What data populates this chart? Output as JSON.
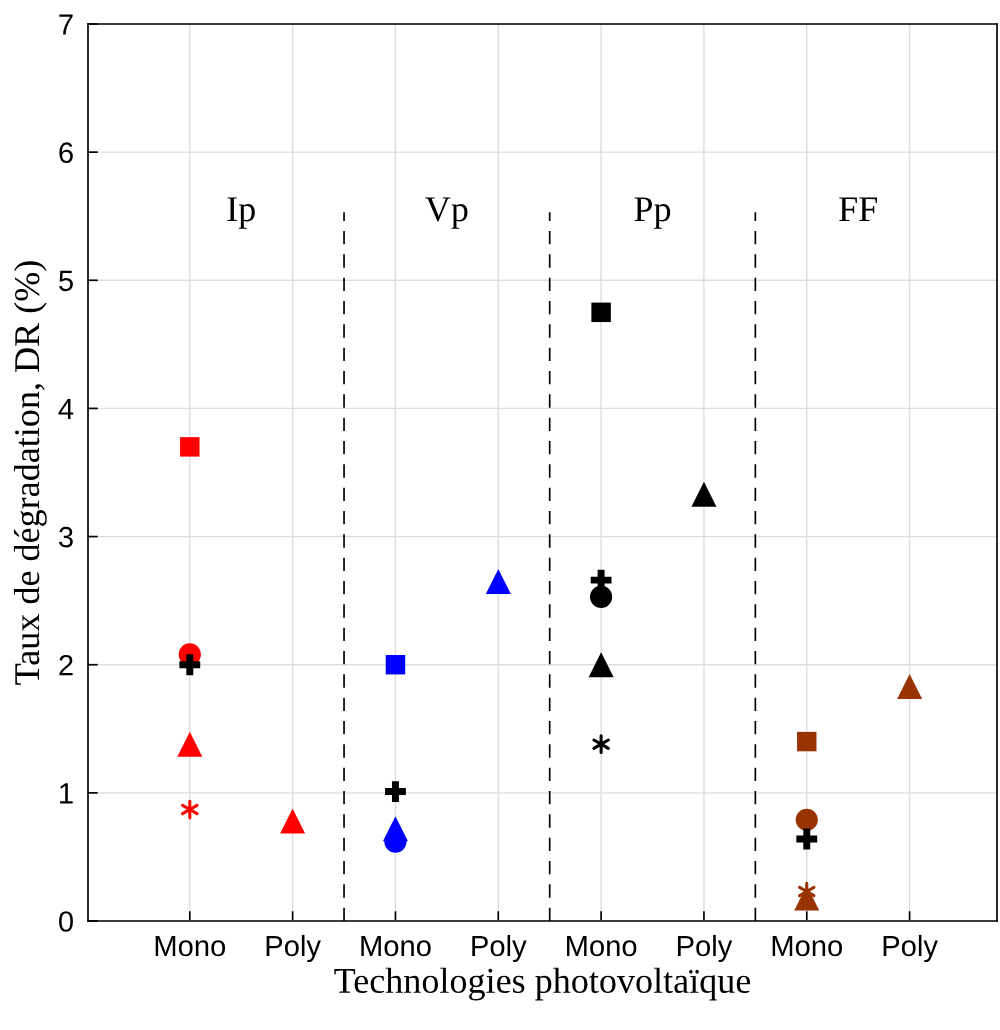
{
  "chart_data": {
    "type": "scatter",
    "xlabel": "Technologies photovoltaïque",
    "ylabel": "Taux de dégradation, DR (%)",
    "categories": [
      "Mono",
      "Poly",
      "Mono",
      "Poly",
      "Mono",
      "Poly",
      "Mono",
      "Poly"
    ],
    "ylim": [
      0,
      7
    ],
    "yticks": [
      0,
      1,
      2,
      3,
      4,
      5,
      6,
      7
    ],
    "grid": true,
    "annotations": [
      "Ip",
      "Vp",
      "Pp",
      "FF"
    ],
    "series": [
      {
        "marker": "square",
        "color": "#ff0000",
        "values": [
          3.7,
          null,
          null,
          null,
          null,
          null,
          null,
          null
        ]
      },
      {
        "marker": "circle",
        "color": "#ff0000",
        "values": [
          2.08,
          null,
          null,
          null,
          null,
          null,
          null,
          null
        ]
      },
      {
        "marker": "triangle",
        "color": "#ff0000",
        "values": [
          1.38,
          0.78,
          null,
          null,
          null,
          null,
          null,
          null
        ]
      },
      {
        "marker": "cross",
        "color": "#ff0000",
        "values": [
          0.87,
          null,
          null,
          null,
          null,
          null,
          null,
          null
        ]
      },
      {
        "marker": "square",
        "color": "#0000ff",
        "values": [
          null,
          null,
          2.0,
          null,
          null,
          null,
          null,
          null
        ]
      },
      {
        "marker": "triangle",
        "color": "#0000ff",
        "values": [
          null,
          null,
          0.72,
          2.65,
          null,
          null,
          null,
          null
        ]
      },
      {
        "marker": "circle",
        "color": "#0000ff",
        "values": [
          null,
          null,
          0.62,
          null,
          null,
          null,
          null,
          null
        ]
      },
      {
        "marker": "square",
        "color": "#000000",
        "values": [
          null,
          null,
          null,
          null,
          4.75,
          null,
          null,
          null
        ]
      },
      {
        "marker": "circle",
        "color": "#000000",
        "values": [
          null,
          null,
          null,
          null,
          2.53,
          null,
          null,
          null
        ]
      },
      {
        "marker": "triangle",
        "color": "#000000",
        "values": [
          null,
          null,
          null,
          null,
          2.0,
          3.33,
          null,
          null
        ]
      },
      {
        "marker": "cross",
        "color": "#000000",
        "values": [
          null,
          null,
          null,
          null,
          1.38,
          null,
          null,
          null
        ]
      },
      {
        "marker": "square",
        "color": "#993300",
        "values": [
          null,
          null,
          null,
          null,
          null,
          null,
          1.4,
          null
        ]
      },
      {
        "marker": "circle",
        "color": "#993300",
        "values": [
          null,
          null,
          null,
          null,
          null,
          null,
          0.79,
          null
        ]
      },
      {
        "marker": "cross",
        "color": "#993300",
        "values": [
          null,
          null,
          null,
          null,
          null,
          null,
          0.23,
          null
        ]
      },
      {
        "marker": "triangle",
        "color": "#993300",
        "values": [
          null,
          null,
          null,
          null,
          null,
          null,
          0.18,
          1.83
        ]
      },
      {
        "color": "#000000",
        "values": [
          2.0,
          null,
          1.01,
          null,
          2.66,
          null,
          0.64,
          null
        ]
      }
    ]
  }
}
